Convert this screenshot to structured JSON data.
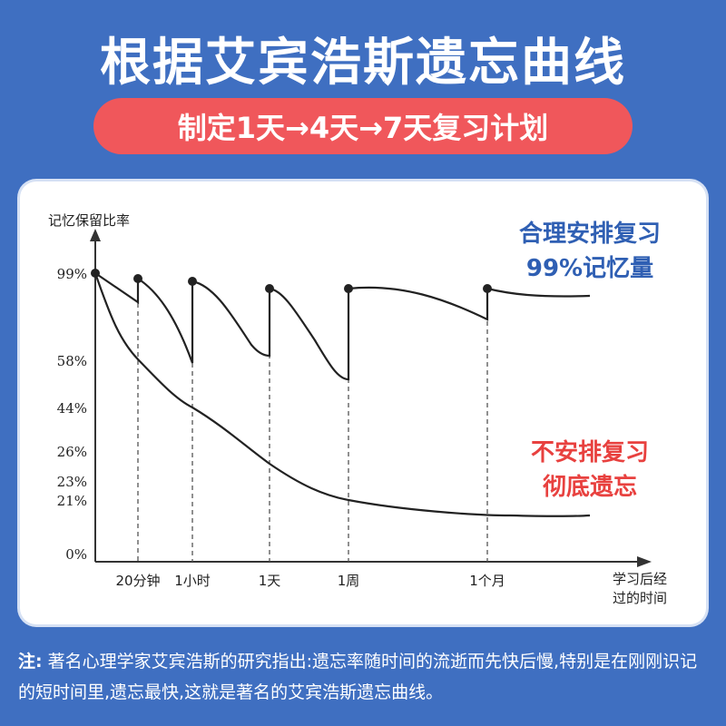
{
  "header": {
    "title": "根据艾宾浩斯遗忘曲线",
    "subtitle": "制定1天→4天→7天复习计划"
  },
  "footer": {
    "label": "注:",
    "text": "著名心理学家艾宾浩斯的研究指出:遗忘率随时间的流逝而先快后慢,特别是在刚刚识记的短时间里,遗忘最快,这就是著名的艾宾浩斯遗忘曲线。"
  },
  "chart_data": {
    "type": "line",
    "ylabel": "记忆保留比率",
    "xlabel": [
      "学习后经",
      "过的时间"
    ],
    "y_ticks": [
      "99%",
      "58%",
      "44%",
      "26%",
      "23%",
      "21%",
      "0%"
    ],
    "x_ticks": [
      "20分钟",
      "1小时",
      "1天",
      "1周",
      "1个月"
    ],
    "annotations": {
      "with_review": [
        "合理安排复习",
        "99%记忆量"
      ],
      "without_review": [
        "不安排复习",
        "彻底遗忘"
      ]
    },
    "series": [
      {
        "label": "合理安排复习",
        "values": [
          99,
          94,
          99,
          68,
          99,
          76,
          97,
          71,
          97,
          95,
          89,
          94,
          92
        ]
      },
      {
        "label": "不安排复习",
        "values": [
          99,
          58,
          44,
          26,
          21,
          13,
          13
        ]
      }
    ],
    "colors": {
      "axis": "#333333",
      "curve": "#222222",
      "blue": "#2f5fb3",
      "red": "#e8413f"
    }
  }
}
